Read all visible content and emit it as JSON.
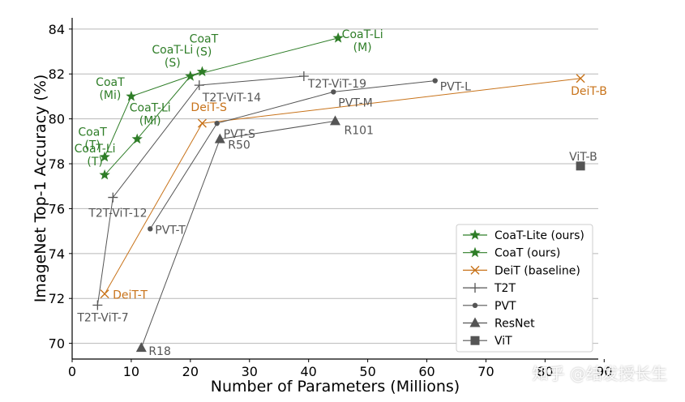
{
  "watermark": "知乎 @结发授长生",
  "chart_data": {
    "type": "line",
    "xlabel": "Number of Parameters (Millions)",
    "ylabel": "ImageNet Top-1 Accuracy (%)",
    "xlim": [
      0,
      89
    ],
    "ylim": [
      69.3,
      84.5
    ],
    "xticks": [
      "0",
      "10",
      "20",
      "30",
      "40",
      "50",
      "60",
      "70",
      "80",
      "90"
    ],
    "yticks": [
      "70",
      "72",
      "74",
      "76",
      "78",
      "80",
      "82",
      "84"
    ],
    "grid": "horizontal",
    "legend_position": "bottom-right",
    "series": [
      {
        "name": "CoaT-Lite (ours)",
        "color": "#2e7d27",
        "marker": "star",
        "points": [
          {
            "x": 5.5,
            "y": 77.5,
            "label": "CoaT-Li\n(T)"
          },
          {
            "x": 11,
            "y": 79.1,
            "label": "CoaT-Li\n(Mi)"
          },
          {
            "x": 20,
            "y": 81.9,
            "label": "CoaT-Li\n(S)"
          },
          {
            "x": 45,
            "y": 83.6,
            "label": "CoaT-Li\n(M)"
          }
        ]
      },
      {
        "name": "CoaT (ours)",
        "color": "#2e7d27",
        "marker": "star",
        "points": [
          {
            "x": 5.5,
            "y": 78.3,
            "label": "CoaT\n(T)"
          },
          {
            "x": 10,
            "y": 81.0,
            "label": "CoaT\n(Mi)"
          },
          {
            "x": 22,
            "y": 82.1,
            "label": "CoaT\n(S)"
          }
        ]
      },
      {
        "name": "DeiT (baseline)",
        "color": "#c8731a",
        "marker": "x",
        "points": [
          {
            "x": 5.5,
            "y": 72.2,
            "label": "DeiT-T"
          },
          {
            "x": 22,
            "y": 79.8,
            "label": "DeiT-S"
          },
          {
            "x": 86,
            "y": 81.8,
            "label": "DeiT-B"
          }
        ]
      },
      {
        "name": "T2T",
        "color": "#555555",
        "marker": "plus",
        "points": [
          {
            "x": 4.3,
            "y": 71.7,
            "label": "T2T-ViT-7"
          },
          {
            "x": 6.9,
            "y": 76.5,
            "label": "T2T-ViT-12"
          },
          {
            "x": 21.5,
            "y": 81.5,
            "label": "T2T-ViT-14"
          },
          {
            "x": 39.2,
            "y": 81.9,
            "label": "T2T-ViT-19"
          }
        ]
      },
      {
        "name": "PVT",
        "color": "#555555",
        "marker": "dot",
        "points": [
          {
            "x": 13.2,
            "y": 75.1,
            "label": "PVT-T"
          },
          {
            "x": 24.5,
            "y": 79.8,
            "label": "PVT-S"
          },
          {
            "x": 44.2,
            "y": 81.2,
            "label": "PVT-M"
          },
          {
            "x": 61.4,
            "y": 81.7,
            "label": "PVT-L"
          }
        ]
      },
      {
        "name": "ResNet",
        "color": "#555555",
        "marker": "triangle",
        "points": [
          {
            "x": 11.7,
            "y": 69.8,
            "label": "R18"
          },
          {
            "x": 25,
            "y": 79.1,
            "label": "R50"
          },
          {
            "x": 44.5,
            "y": 79.9,
            "label": "R101"
          }
        ]
      },
      {
        "name": "ViT",
        "color": "#555555",
        "marker": "square",
        "points": [
          {
            "x": 86,
            "y": 77.9,
            "label": "ViT-B"
          }
        ]
      }
    ]
  }
}
